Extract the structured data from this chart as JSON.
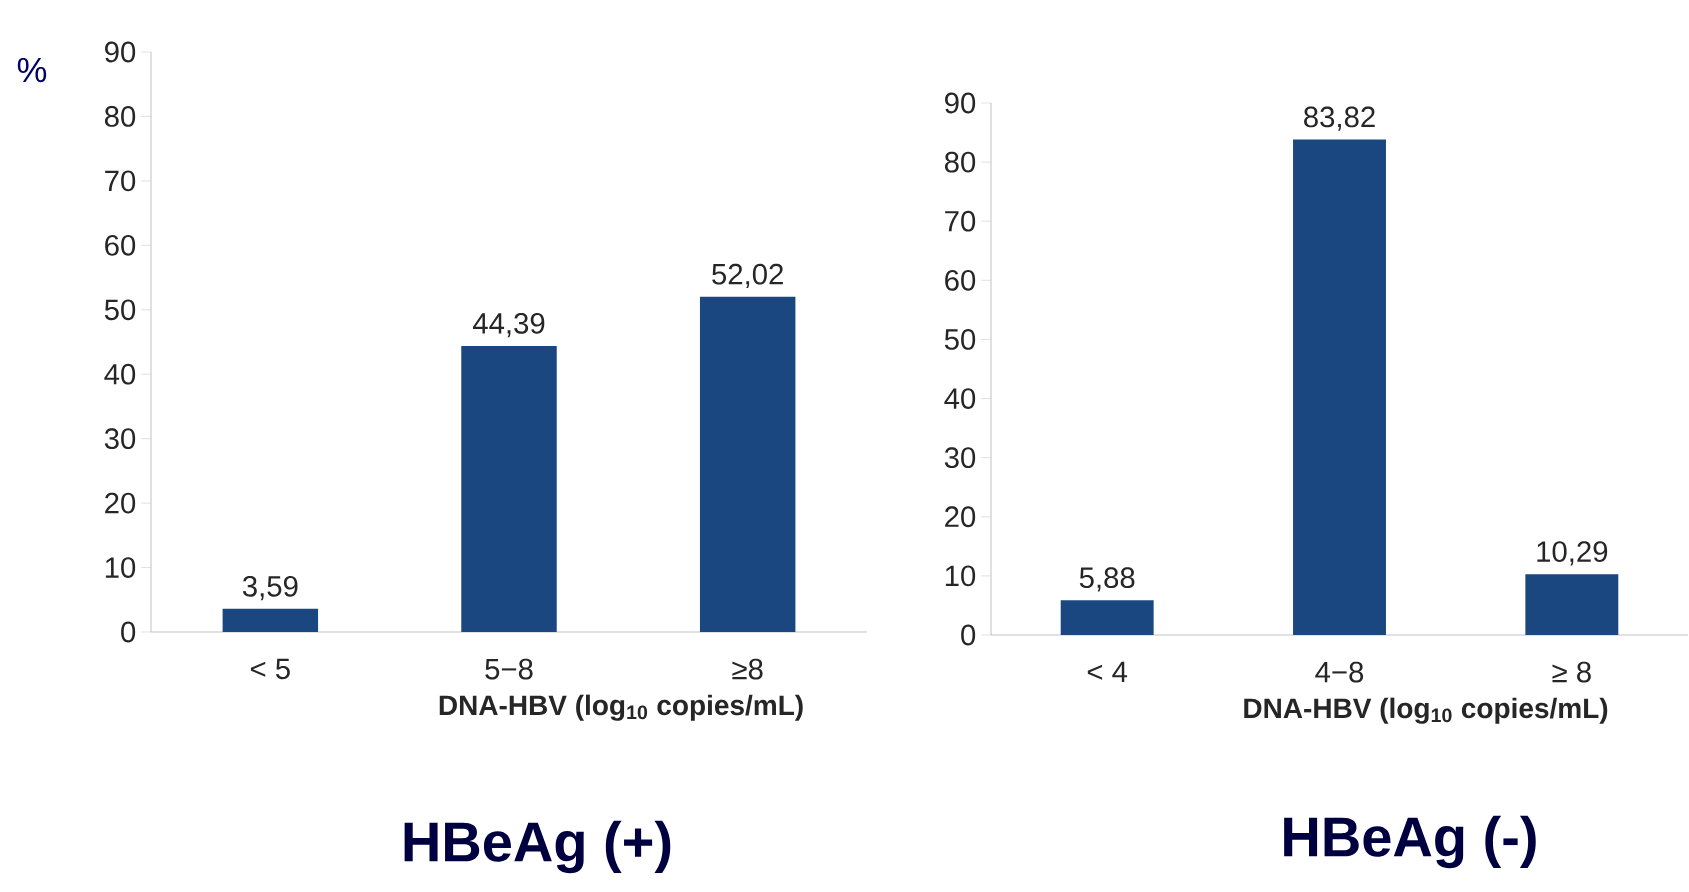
{
  "chart_data": [
    {
      "type": "bar",
      "title": "HBeAg (+)",
      "xlabel": "DNA-HBV (log$_{10}$ copies/mL)",
      "ylabel": "%",
      "categories": [
        "< 5",
        "5−8",
        "≥8"
      ],
      "values": [
        3.59,
        44.39,
        52.02
      ],
      "value_labels": [
        "3,59",
        "44,39",
        "52,02"
      ],
      "color": "#1a4780",
      "ylim": [
        0,
        90
      ],
      "yticks": [
        0,
        10,
        20,
        30,
        40,
        50,
        60,
        70,
        80,
        90
      ]
    },
    {
      "type": "bar",
      "title": "HBeAg (-)",
      "xlabel": "DNA-HBV (log$_{10}$ copies/mL)",
      "categories": [
        "< 4",
        "4−8",
        "≥ 8"
      ],
      "values": [
        5.88,
        83.82,
        10.29
      ],
      "value_labels": [
        "5,88",
        "83,82",
        "10,29"
      ],
      "color": "#1a4780",
      "ylim": [
        0,
        90
      ],
      "yticks": [
        0,
        10,
        20,
        30,
        40,
        50,
        60,
        70,
        80,
        90
      ]
    }
  ]
}
